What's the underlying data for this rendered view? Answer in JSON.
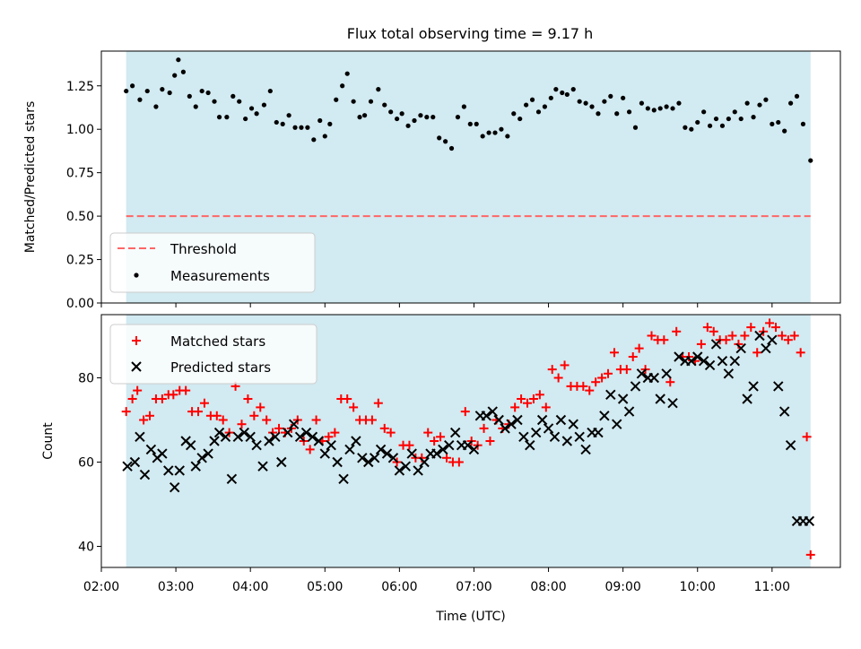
{
  "title": "Flux total observing time = 9.17 h",
  "colors": {
    "shade": "#add8e6",
    "threshold": "#ff6666",
    "measurement": "#000000",
    "matched": "#ff0000",
    "predicted": "#000000"
  },
  "chart_data": [
    {
      "type": "scatter",
      "title": "Flux total observing time = 9.17 h",
      "xlabel": "",
      "ylabel": "Matched/Predicted stars",
      "ylim": [
        0.0,
        1.45
      ],
      "yticks": [
        0.0,
        0.25,
        0.5,
        0.75,
        1.0,
        1.25
      ],
      "ytick_labels": [
        "0.00",
        "0.25",
        "0.50",
        "0.75",
        "1.00",
        "1.25"
      ],
      "shaded_span": [
        "02:20",
        "11:31"
      ],
      "threshold": 0.5,
      "legend": {
        "placement": "lower-left",
        "entries": [
          "Threshold",
          "Measurements"
        ]
      },
      "series": [
        {
          "name": "Measurements",
          "x": [
            "02:20",
            "02:25",
            "02:31",
            "02:37",
            "02:44",
            "02:49",
            "02:55",
            "02:59",
            "03:02",
            "03:06",
            "03:11",
            "03:16",
            "03:21",
            "03:26",
            "03:31",
            "03:35",
            "03:41",
            "03:46",
            "03:51",
            "03:56",
            "04:01",
            "04:05",
            "04:11",
            "04:16",
            "04:21",
            "04:26",
            "04:31",
            "04:36",
            "04:41",
            "04:46",
            "04:51",
            "04:56",
            "05:00",
            "05:04",
            "05:09",
            "05:14",
            "05:18",
            "05:23",
            "05:28",
            "05:32",
            "05:37",
            "05:43",
            "05:48",
            "05:53",
            "05:58",
            "06:02",
            "06:07",
            "06:12",
            "06:17",
            "06:22",
            "06:27",
            "06:32",
            "06:37",
            "06:42",
            "06:47",
            "06:52",
            "06:57",
            "07:02",
            "07:07",
            "07:12",
            "07:17",
            "07:22",
            "07:27",
            "07:32",
            "07:37",
            "07:42",
            "07:47",
            "07:52",
            "07:57",
            "08:02",
            "08:06",
            "08:11",
            "08:15",
            "08:20",
            "08:25",
            "08:30",
            "08:35",
            "08:40",
            "08:45",
            "08:50",
            "08:55",
            "09:00",
            "09:05",
            "09:10",
            "09:15",
            "09:20",
            "09:25",
            "09:30",
            "09:35",
            "09:40",
            "09:45",
            "09:50",
            "09:55",
            "10:00",
            "10:05",
            "10:10",
            "10:15",
            "10:20",
            "10:25",
            "10:30",
            "10:35",
            "10:40",
            "10:45",
            "10:50",
            "10:55",
            "11:00",
            "11:05",
            "11:10",
            "11:15",
            "11:20",
            "11:25",
            "11:31"
          ],
          "y": [
            1.22,
            1.25,
            1.17,
            1.22,
            1.13,
            1.23,
            1.21,
            1.31,
            1.4,
            1.33,
            1.19,
            1.13,
            1.22,
            1.21,
            1.16,
            1.07,
            1.07,
            1.19,
            1.16,
            1.06,
            1.12,
            1.09,
            1.14,
            1.22,
            1.04,
            1.03,
            1.08,
            1.01,
            1.01,
            1.01,
            0.94,
            1.05,
            0.96,
            1.03,
            1.17,
            1.25,
            1.32,
            1.16,
            1.07,
            1.08,
            1.16,
            1.23,
            1.14,
            1.1,
            1.06,
            1.09,
            1.02,
            1.05,
            1.08,
            1.07,
            1.07,
            0.95,
            0.93,
            0.89,
            1.07,
            1.13,
            1.03,
            1.03,
            0.96,
            0.98,
            0.98,
            1.0,
            0.96,
            1.09,
            1.06,
            1.14,
            1.17,
            1.1,
            1.13,
            1.18,
            1.23,
            1.21,
            1.2,
            1.23,
            1.16,
            1.15,
            1.13,
            1.09,
            1.16,
            1.19,
            1.09,
            1.18,
            1.1,
            1.01,
            1.15,
            1.12,
            1.11,
            1.12,
            1.13,
            1.12,
            1.15,
            1.01,
            1.0,
            1.04,
            1.1,
            1.02,
            1.06,
            1.02,
            1.06,
            1.1,
            1.06,
            1.15,
            1.07,
            1.14,
            1.17,
            1.03,
            1.04,
            0.99,
            1.15,
            1.19,
            1.03,
            0.82
          ]
        }
      ]
    },
    {
      "type": "scatter",
      "xlabel": "Time (UTC)",
      "ylabel": "Count",
      "ylim": [
        35,
        95
      ],
      "yticks": [
        40,
        60,
        80
      ],
      "ytick_labels": [
        "40",
        "60",
        "80"
      ],
      "xlim": [
        "02:00",
        "11:55"
      ],
      "x_categories": [
        "02:00",
        "03:00",
        "04:00",
        "05:00",
        "06:00",
        "07:00",
        "08:00",
        "09:00",
        "10:00",
        "11:00"
      ],
      "shaded_span": [
        "02:20",
        "11:31"
      ],
      "legend": {
        "placement": "upper-left",
        "entries": [
          "Matched stars",
          "Predicted stars"
        ]
      },
      "series": [
        {
          "name": "Matched stars",
          "marker": "+",
          "x": [
            "02:20",
            "02:25",
            "02:29",
            "02:34",
            "02:39",
            "02:44",
            "02:49",
            "02:54",
            "02:58",
            "03:03",
            "03:08",
            "03:13",
            "03:18",
            "03:23",
            "03:28",
            "03:33",
            "03:38",
            "03:43",
            "03:48",
            "03:53",
            "03:58",
            "04:03",
            "04:08",
            "04:13",
            "04:18",
            "04:23",
            "04:28",
            "04:33",
            "04:38",
            "04:43",
            "04:48",
            "04:53",
            "04:58",
            "05:03",
            "05:08",
            "05:13",
            "05:18",
            "05:23",
            "05:28",
            "05:33",
            "05:38",
            "05:43",
            "05:48",
            "05:53",
            "05:58",
            "06:03",
            "06:08",
            "06:13",
            "06:18",
            "06:23",
            "06:28",
            "06:33",
            "06:38",
            "06:43",
            "06:48",
            "06:53",
            "06:58",
            "07:03",
            "07:08",
            "07:13",
            "07:18",
            "07:23",
            "07:28",
            "07:33",
            "07:38",
            "07:43",
            "07:48",
            "07:53",
            "07:58",
            "08:03",
            "08:08",
            "08:13",
            "08:18",
            "08:23",
            "08:28",
            "08:33",
            "08:38",
            "08:43",
            "08:48",
            "08:53",
            "08:58",
            "09:03",
            "09:08",
            "09:13",
            "09:18",
            "09:23",
            "09:28",
            "09:33",
            "09:38",
            "09:43",
            "09:48",
            "09:53",
            "09:58",
            "10:03",
            "10:08",
            "10:13",
            "10:18",
            "10:23",
            "10:28",
            "10:33",
            "10:38",
            "10:43",
            "10:48",
            "10:53",
            "10:58",
            "11:03",
            "11:08",
            "11:13",
            "11:18",
            "11:23",
            "11:28",
            "11:31"
          ],
          "y": [
            72,
            75,
            77,
            70,
            71,
            75,
            75,
            76,
            76,
            77,
            77,
            72,
            72,
            74,
            71,
            71,
            70,
            67,
            78,
            69,
            75,
            71,
            73,
            70,
            67,
            68,
            67,
            68,
            70,
            65,
            63,
            70,
            65,
            66,
            67,
            75,
            75,
            73,
            70,
            70,
            70,
            74,
            68,
            67,
            60,
            64,
            64,
            61,
            61,
            67,
            65,
            66,
            61,
            60,
            60,
            72,
            65,
            64,
            68,
            65,
            70,
            68,
            69,
            73,
            75,
            74,
            75,
            76,
            73,
            82,
            80,
            83,
            78,
            78,
            78,
            77,
            79,
            80,
            81,
            86,
            82,
            82,
            85,
            87,
            82,
            90,
            89,
            89,
            79,
            91,
            85,
            85,
            84,
            88,
            92,
            91,
            89,
            89,
            90,
            88,
            90,
            92,
            86,
            91,
            93,
            92,
            90,
            89,
            90,
            86,
            66,
            38
          ]
        },
        {
          "name": "Predicted stars",
          "marker": "x",
          "x": [
            "02:21",
            "02:27",
            "02:31",
            "02:35",
            "02:40",
            "02:45",
            "02:49",
            "02:54",
            "02:59",
            "03:03",
            "03:08",
            "03:12",
            "03:16",
            "03:21",
            "03:26",
            "03:31",
            "03:35",
            "03:40",
            "03:45",
            "03:50",
            "03:55",
            "04:00",
            "04:05",
            "04:10",
            "04:15",
            "04:20",
            "04:25",
            "04:30",
            "04:35",
            "04:40",
            "04:45",
            "04:50",
            "04:55",
            "05:00",
            "05:05",
            "05:10",
            "05:15",
            "05:20",
            "05:25",
            "05:30",
            "05:35",
            "05:40",
            "05:45",
            "05:50",
            "05:55",
            "06:00",
            "06:05",
            "06:10",
            "06:15",
            "06:20",
            "06:25",
            "06:30",
            "06:35",
            "06:40",
            "06:45",
            "06:50",
            "06:55",
            "07:00",
            "07:05",
            "07:10",
            "07:15",
            "07:20",
            "07:25",
            "07:30",
            "07:35",
            "07:40",
            "07:45",
            "07:50",
            "07:55",
            "08:00",
            "08:05",
            "08:10",
            "08:15",
            "08:20",
            "08:25",
            "08:30",
            "08:35",
            "08:40",
            "08:45",
            "08:50",
            "08:55",
            "09:00",
            "09:05",
            "09:10",
            "09:15",
            "09:20",
            "09:25",
            "09:30",
            "09:35",
            "09:40",
            "09:45",
            "09:50",
            "09:55",
            "10:00",
            "10:05",
            "10:10",
            "10:15",
            "10:20",
            "10:25",
            "10:30",
            "10:35",
            "10:40",
            "10:45",
            "10:50",
            "10:55",
            "11:00",
            "11:05",
            "11:10",
            "11:15",
            "11:20",
            "11:25",
            "11:30"
          ],
          "y": [
            59,
            60,
            66,
            57,
            63,
            61,
            62,
            58,
            54,
            58,
            65,
            64,
            59,
            61,
            62,
            65,
            67,
            66,
            56,
            66,
            67,
            66,
            64,
            59,
            65,
            66,
            60,
            67,
            69,
            66,
            67,
            66,
            65,
            62,
            64,
            60,
            56,
            63,
            65,
            61,
            60,
            61,
            63,
            62,
            61,
            58,
            59,
            62,
            58,
            60,
            62,
            62,
            63,
            64,
            67,
            64,
            64,
            63,
            71,
            71,
            72,
            70,
            68,
            69,
            70,
            66,
            64,
            67,
            70,
            68,
            66,
            70,
            65,
            69,
            66,
            63,
            67,
            67,
            71,
            76,
            69,
            75,
            72,
            78,
            81,
            80,
            80,
            75,
            81,
            74,
            85,
            84,
            84,
            85,
            84,
            83,
            88,
            84,
            81,
            84,
            87,
            75,
            78,
            90,
            87,
            89,
            78,
            72,
            64,
            46,
            46,
            46
          ]
        }
      ]
    }
  ]
}
